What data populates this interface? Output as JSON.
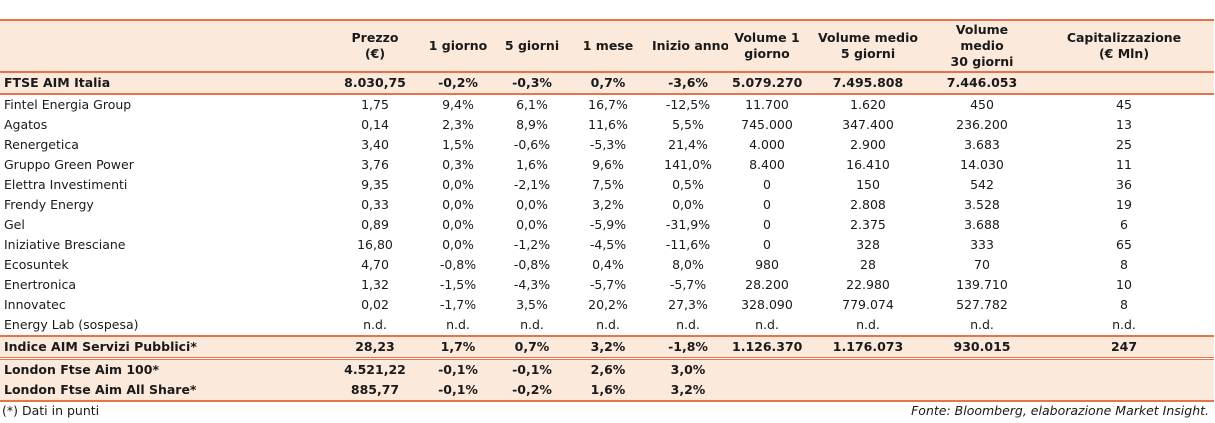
{
  "columns": [
    "",
    "Prezzo\n(€)",
    "1 giorno",
    "5 giorni",
    "1 mese",
    "Inizio anno",
    "Volume 1\ngiorno",
    "Volume medio\n5 giorni",
    "Volume medio\n30 giorni",
    "Capitalizzazione\n(€ Mln)"
  ],
  "index_row": [
    "FTSE AIM Italia",
    "8.030,75",
    "-0,2%",
    "-0,3%",
    "0,7%",
    "-3,6%",
    "5.079.270",
    "7.495.808",
    "7.446.053",
    ""
  ],
  "rows": [
    [
      "Fintel Energia Group",
      "1,75",
      "9,4%",
      "6,1%",
      "16,7%",
      "-12,5%",
      "11.700",
      "1.620",
      "450",
      "45"
    ],
    [
      "Agatos",
      "0,14",
      "2,3%",
      "8,9%",
      "11,6%",
      "5,5%",
      "745.000",
      "347.400",
      "236.200",
      "13"
    ],
    [
      "Renergetica",
      "3,40",
      "1,5%",
      "-0,6%",
      "-5,3%",
      "21,4%",
      "4.000",
      "2.900",
      "3.683",
      "25"
    ],
    [
      "Gruppo Green Power",
      "3,76",
      "0,3%",
      "1,6%",
      "9,6%",
      "141,0%",
      "8.400",
      "16.410",
      "14.030",
      "11"
    ],
    [
      "Elettra Investimenti",
      "9,35",
      "0,0%",
      "-2,1%",
      "7,5%",
      "0,5%",
      "0",
      "150",
      "542",
      "36"
    ],
    [
      "Frendy Energy",
      "0,33",
      "0,0%",
      "0,0%",
      "3,2%",
      "0,0%",
      "0",
      "2.808",
      "3.528",
      "19"
    ],
    [
      "Gel",
      "0,89",
      "0,0%",
      "0,0%",
      "-5,9%",
      "-31,9%",
      "0",
      "2.375",
      "3.688",
      "6"
    ],
    [
      "Iniziative Bresciane",
      "16,80",
      "0,0%",
      "-1,2%",
      "-4,5%",
      "-11,6%",
      "0",
      "328",
      "333",
      "65"
    ],
    [
      "Ecosuntek",
      "4,70",
      "-0,8%",
      "-0,8%",
      "0,4%",
      "8,0%",
      "980",
      "28",
      "70",
      "8"
    ],
    [
      "Enertronica",
      "1,32",
      "-1,5%",
      "-4,3%",
      "-5,7%",
      "-5,7%",
      "28.200",
      "22.980",
      "139.710",
      "10"
    ],
    [
      "Innovatec",
      "0,02",
      "-1,7%",
      "3,5%",
      "20,2%",
      "27,3%",
      "328.090",
      "779.074",
      "527.782",
      "8"
    ],
    [
      "Energy Lab (sospesa)",
      "n.d.",
      "n.d.",
      "n.d.",
      "n.d.",
      "n.d.",
      "n.d.",
      "n.d.",
      "n.d.",
      "n.d."
    ]
  ],
  "aim_row": [
    "Indice AIM Servizi Pubblici*",
    "28,23",
    "1,7%",
    "0,7%",
    "3,2%",
    "-1,8%",
    "1.126.370",
    "1.176.073",
    "930.015",
    "247"
  ],
  "london_rows": [
    [
      "London Ftse Aim 100*",
      "4.521,22",
      "-0,1%",
      "-0,1%",
      "2,6%",
      "3,0%",
      "",
      "",
      "",
      ""
    ],
    [
      "London Ftse Aim All Share*",
      "885,77",
      "-0,1%",
      "-0,2%",
      "1,6%",
      "3,2%",
      "",
      "",
      "",
      ""
    ]
  ],
  "footnote": "(*) Dati in punti",
  "source": "Fonte: Bloomberg, elaborazione Market Insight.",
  "colors": {
    "accent": "#e8734a",
    "highlight_bg": "#fbe9dc"
  }
}
